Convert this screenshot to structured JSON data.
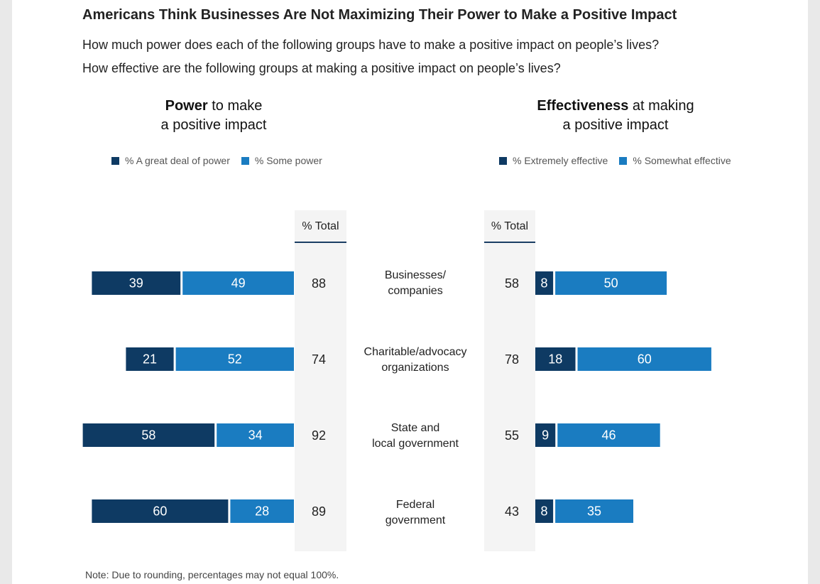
{
  "title": "Americans Think Businesses Are Not Maximizing Their Power to Make a Positive Impact",
  "questions": [
    "How much power does each of the following groups have to make a positive impact on people’s lives?",
    "How effective are the following groups at making a positive impact on people’s lives?"
  ],
  "note": "Note: Due to rounding, percentages may not equal 100%.",
  "colors": {
    "dark": "#0e3a63",
    "light": "#1a7cc1"
  },
  "chart_data": [
    {
      "type": "bar",
      "orientation": "horizontal-stacked",
      "panel": "power",
      "title_bold": "Power",
      "title_rest": " to make",
      "title_line2": "a positive impact",
      "total_header": "% Total",
      "categories": [
        "Businesses/\ncompanies",
        "Charitable/advocacy\norganizations",
        "State and\nlocal government",
        "Federal\ngovernment"
      ],
      "series": [
        {
          "name": "% A great deal of power",
          "values": [
            39,
            21,
            58,
            60
          ]
        },
        {
          "name": "% Some power",
          "values": [
            49,
            52,
            34,
            28
          ]
        }
      ],
      "totals": [
        88,
        74,
        92,
        89
      ]
    },
    {
      "type": "bar",
      "orientation": "horizontal-stacked",
      "panel": "effectiveness",
      "title_bold": "Effectiveness",
      "title_rest": " at making",
      "title_line2": "a positive impact",
      "total_header": "% Total",
      "categories": [
        "Businesses/\ncompanies",
        "Charitable/advocacy\norganizations",
        "State and\nlocal government",
        "Federal\ngovernment"
      ],
      "series": [
        {
          "name": "% Extremely effective",
          "values": [
            8,
            18,
            9,
            8
          ]
        },
        {
          "name": "% Somewhat effective",
          "values": [
            50,
            60,
            46,
            35
          ]
        }
      ],
      "totals": [
        58,
        78,
        55,
        43
      ]
    }
  ]
}
